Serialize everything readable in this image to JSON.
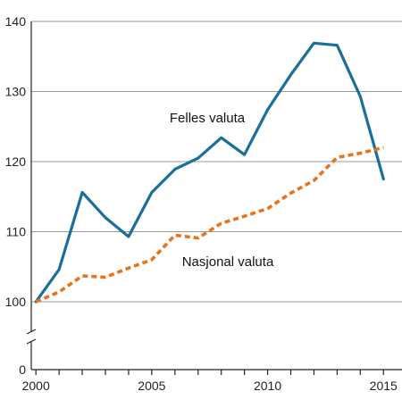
{
  "chart_data": {
    "type": "line",
    "title": "",
    "xlabel": "",
    "ylabel": "",
    "x": [
      2000,
      2001,
      2002,
      2003,
      2004,
      2005,
      2006,
      2007,
      2008,
      2009,
      2010,
      2011,
      2012,
      2013,
      2014,
      2015
    ],
    "xlim": [
      1999.8,
      2015.8
    ],
    "ylim": [
      0,
      140
    ],
    "y_axis_break": true,
    "grid": true,
    "legend": "inline labels",
    "x_ticks": [
      {
        "value": 2000,
        "label": "2000"
      },
      {
        "value": 2005,
        "label": "2005"
      },
      {
        "value": 2010,
        "label": "2010"
      },
      {
        "value": 2015,
        "label": "2015"
      }
    ],
    "y_ticks": [
      {
        "value": 0,
        "label": "0"
      },
      {
        "value": 100,
        "label": "100"
      },
      {
        "value": 110,
        "label": "110"
      },
      {
        "value": 120,
        "label": "120"
      },
      {
        "value": 130,
        "label": "130"
      },
      {
        "value": 140,
        "label": "140"
      }
    ],
    "series": [
      {
        "name": "Felles valuta",
        "color": "#1a6e9a",
        "style": "solid",
        "values": [
          100,
          104.6,
          115.6,
          112.0,
          109.3,
          115.6,
          118.9,
          120.5,
          123.4,
          121.0,
          127.4,
          132.4,
          136.9,
          136.6,
          129.3,
          117.5
        ]
      },
      {
        "name": "Nasjonal valuta",
        "color": "#e8731a",
        "style": "dashed",
        "values": [
          100,
          101.4,
          103.7,
          103.5,
          104.8,
          106.0,
          109.5,
          109.1,
          111.2,
          112.2,
          113.3,
          115.5,
          117.3,
          120.6,
          121.2,
          122.0
        ]
      }
    ]
  }
}
